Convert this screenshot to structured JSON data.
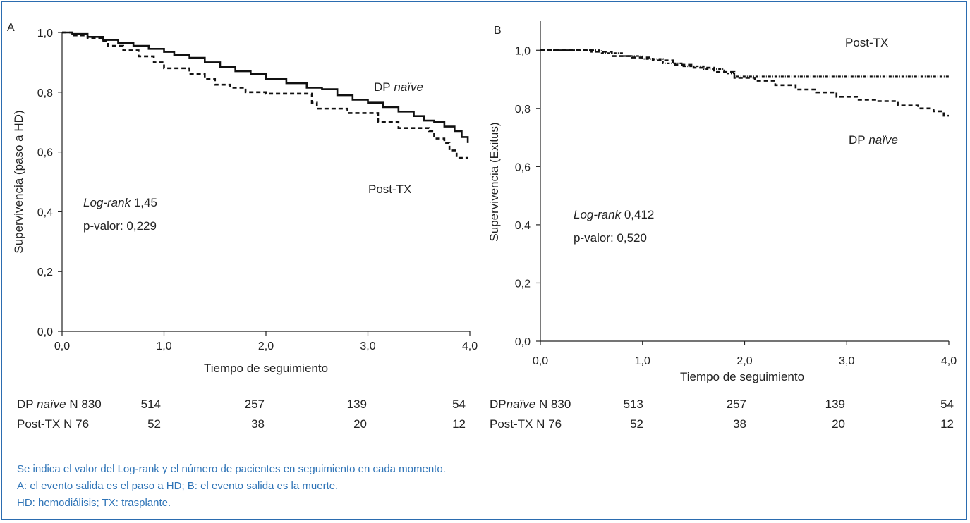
{
  "chart_data": [
    {
      "panel": "A",
      "type": "line",
      "step": true,
      "xlabel": "Tiempo de seguimiento",
      "ylabel": "Supervivencia (paso a HD)",
      "xlim": [
        0,
        4
      ],
      "ylim": [
        0,
        1
      ],
      "x_ticks": [
        "0,0",
        "1,0",
        "2,0",
        "3,0",
        "4,0"
      ],
      "y_ticks": [
        "0,0",
        "0,2",
        "0,4",
        "0,6",
        "0,8",
        "1,0"
      ],
      "series": [
        {
          "name": "DP naïve",
          "style": "solid",
          "points": [
            [
              0,
              1.0
            ],
            [
              0.1,
              0.995
            ],
            [
              0.25,
              0.985
            ],
            [
              0.4,
              0.975
            ],
            [
              0.55,
              0.965
            ],
            [
              0.7,
              0.955
            ],
            [
              0.85,
              0.945
            ],
            [
              1.0,
              0.935
            ],
            [
              1.1,
              0.925
            ],
            [
              1.25,
              0.915
            ],
            [
              1.4,
              0.9
            ],
            [
              1.55,
              0.885
            ],
            [
              1.7,
              0.87
            ],
            [
              1.85,
              0.86
            ],
            [
              2.0,
              0.845
            ],
            [
              2.2,
              0.83
            ],
            [
              2.4,
              0.815
            ],
            [
              2.55,
              0.81
            ],
            [
              2.7,
              0.79
            ],
            [
              2.85,
              0.775
            ],
            [
              3.0,
              0.765
            ],
            [
              3.15,
              0.75
            ],
            [
              3.3,
              0.735
            ],
            [
              3.45,
              0.72
            ],
            [
              3.55,
              0.705
            ],
            [
              3.65,
              0.7
            ],
            [
              3.75,
              0.685
            ],
            [
              3.85,
              0.67
            ],
            [
              3.92,
              0.65
            ],
            [
              3.98,
              0.63
            ]
          ]
        },
        {
          "name": "Post-TX",
          "style": "dashed",
          "points": [
            [
              0,
              1.0
            ],
            [
              0.1,
              0.99
            ],
            [
              0.25,
              0.98
            ],
            [
              0.4,
              0.97
            ],
            [
              0.45,
              0.955
            ],
            [
              0.6,
              0.94
            ],
            [
              0.75,
              0.92
            ],
            [
              0.9,
              0.9
            ],
            [
              1.0,
              0.88
            ],
            [
              1.25,
              0.86
            ],
            [
              1.4,
              0.845
            ],
            [
              1.5,
              0.825
            ],
            [
              1.65,
              0.815
            ],
            [
              1.8,
              0.8
            ],
            [
              2.0,
              0.795
            ],
            [
              2.2,
              0.795
            ],
            [
              2.45,
              0.765
            ],
            [
              2.5,
              0.745
            ],
            [
              2.8,
              0.73
            ],
            [
              3.1,
              0.7
            ],
            [
              3.3,
              0.68
            ],
            [
              3.6,
              0.67
            ],
            [
              3.65,
              0.645
            ],
            [
              3.75,
              0.63
            ],
            [
              3.8,
              0.605
            ],
            [
              3.87,
              0.58
            ],
            [
              3.98,
              0.58
            ]
          ]
        }
      ],
      "annotations": {
        "series_label_1": "DP",
        "series_label_1_italic": "naïve",
        "series_label_2": "Post-TX",
        "logrank_label": "Log-rank",
        "logrank_value": "1,45",
        "pvalue": "p-valor: 0,229"
      },
      "at_risk": {
        "rows": [
          {
            "label_prefix": "DP ",
            "label_italic": "naïve",
            "label_suffix": " N 830",
            "values": [
              "514",
              "257",
              "139",
              "54"
            ]
          },
          {
            "label_prefix": "Post-TX N 76",
            "label_italic": "",
            "label_suffix": "",
            "values": [
              "52",
              "38",
              "20",
              "12"
            ]
          }
        ]
      }
    },
    {
      "panel": "B",
      "type": "line",
      "step": true,
      "xlabel": "Tiempo de seguimiento",
      "ylabel": "Supervivencia (Exitus)",
      "xlim": [
        0,
        4
      ],
      "ylim": [
        0,
        1.1
      ],
      "x_ticks": [
        "0,0",
        "1,0",
        "2,0",
        "3,0",
        "4,0"
      ],
      "y_ticks": [
        "0,0",
        "0,2",
        "0,4",
        "0,6",
        "0,8",
        "1,0"
      ],
      "series": [
        {
          "name": "Post-TX",
          "style": "dash-dot",
          "points": [
            [
              0,
              1.0
            ],
            [
              0.5,
              1.0
            ],
            [
              0.6,
              0.99
            ],
            [
              0.8,
              0.98
            ],
            [
              1.0,
              0.97
            ],
            [
              1.2,
              0.955
            ],
            [
              1.4,
              0.945
            ],
            [
              1.6,
              0.935
            ],
            [
              1.8,
              0.92
            ],
            [
              1.9,
              0.91
            ],
            [
              2.2,
              0.91
            ],
            [
              2.6,
              0.91
            ],
            [
              3.0,
              0.91
            ],
            [
              3.5,
              0.91
            ],
            [
              4.0,
              0.91
            ]
          ]
        },
        {
          "name": "DP naïve",
          "style": "dashed",
          "points": [
            [
              0,
              1.0
            ],
            [
              0.3,
              1.0
            ],
            [
              0.5,
              0.995
            ],
            [
              0.7,
              0.98
            ],
            [
              0.9,
              0.975
            ],
            [
              1.1,
              0.965
            ],
            [
              1.3,
              0.95
            ],
            [
              1.5,
              0.94
            ],
            [
              1.7,
              0.925
            ],
            [
              1.9,
              0.905
            ],
            [
              2.1,
              0.895
            ],
            [
              2.3,
              0.88
            ],
            [
              2.5,
              0.865
            ],
            [
              2.7,
              0.855
            ],
            [
              2.9,
              0.84
            ],
            [
              3.1,
              0.83
            ],
            [
              3.3,
              0.825
            ],
            [
              3.5,
              0.81
            ],
            [
              3.7,
              0.8
            ],
            [
              3.85,
              0.79
            ],
            [
              3.95,
              0.775
            ],
            [
              4.0,
              0.775
            ]
          ]
        }
      ],
      "annotations": {
        "series_label_1": "Post-TX",
        "series_label_2": "DP",
        "series_label_2_italic": "naïve",
        "logrank_label": "Log-rank",
        "logrank_value": "0,412",
        "pvalue": "p-valor: 0,520"
      },
      "at_risk": {
        "rows": [
          {
            "label_prefix": "DP",
            "label_italic": "naïve",
            "label_suffix": " N 830",
            "values": [
              "513",
              "257",
              "139",
              "54"
            ]
          },
          {
            "label_prefix": "Post-TX N 76",
            "label_italic": "",
            "label_suffix": "",
            "values": [
              "52",
              "38",
              "20",
              "12"
            ]
          }
        ]
      }
    }
  ],
  "footnotes": [
    "Se indica el valor del Log-rank y el número de pacientes en seguimiento en cada momento.",
    "A: el evento salida es el paso a HD; B: el evento salida es la muerte.",
    "HD: hemodiálisis; TX: trasplante."
  ],
  "colors": {
    "frame": "#2b6cb0",
    "footnote_text": "#2f74b7",
    "line": "#111111"
  }
}
